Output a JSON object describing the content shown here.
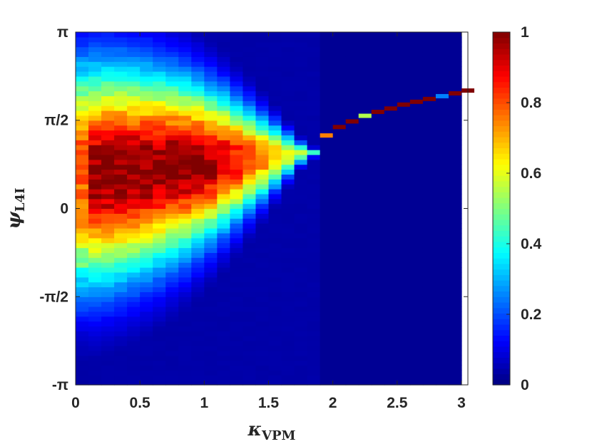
{
  "chart_data": {
    "type": "heatmap",
    "colormap": "jet",
    "xlabel": {
      "symbol": "κ",
      "subscript": "VPM"
    },
    "ylabel": {
      "symbol": "ψ",
      "subscript": "L4I"
    },
    "xlim": [
      0,
      3.05
    ],
    "ylim": [
      -3.14159,
      3.14159
    ],
    "x_ticks": [
      0,
      0.5,
      1,
      1.5,
      2,
      2.5,
      3
    ],
    "x_tick_labels": [
      "0",
      "0.5",
      "1",
      "1.5",
      "2",
      "2.5",
      "3"
    ],
    "y_ticks": [
      -3.14159,
      -1.5708,
      0,
      1.5708,
      3.14159
    ],
    "y_tick_labels": [
      "-π",
      "-π/2",
      "0",
      "π/2",
      "π"
    ],
    "colorbar": {
      "range": [
        0,
        1
      ],
      "ticks": [
        0,
        0.2,
        0.4,
        0.6,
        0.8,
        1
      ],
      "tick_labels": [
        "0",
        "0.2",
        "0.4",
        "0.6",
        "0.8",
        "1"
      ]
    },
    "x_bin_width": 0.1,
    "n_y_bins": 72,
    "ridge": {
      "description_values": "peak ψ position per κ for κ >= 1.9",
      "x": [
        1.9,
        2.0,
        2.1,
        2.2,
        2.3,
        2.4,
        2.5,
        2.6,
        2.7,
        2.8,
        2.9,
        3.0
      ],
      "y": [
        1.3,
        1.45,
        1.55,
        1.65,
        1.72,
        1.78,
        1.85,
        1.9,
        1.95,
        2.0,
        2.05,
        2.1
      ],
      "values": [
        0.75,
        1,
        1,
        0.55,
        1,
        1,
        1,
        1,
        1,
        0.25,
        1,
        1
      ]
    },
    "frame": {
      "color": "#262626"
    }
  }
}
